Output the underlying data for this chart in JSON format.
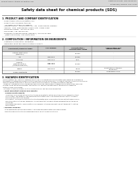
{
  "page_bg": "#ffffff",
  "header_bg": "#e0e0e0",
  "header_left": "Product Name: Lithium Ion Battery Cell",
  "header_right_line1": "Substance Number: SDS-LIB-000019",
  "header_right_line2": "Established / Revision: Dec.7.2016",
  "main_title": "Safety data sheet for chemical products (SDS)",
  "section1_title": "1. PRODUCT AND COMPANY IDENTIFICATION",
  "section1_lines": [
    "  - Product name: Lithium Ion Battery Cell",
    "  - Product code: Cylindrical-type cell",
    "      (IVI 18650, IVI 18650L, IVI 18650A)",
    "  - Company name:    Sanyo Electric Co., Ltd.  Mobile Energy Company",
    "  - Address:   2201  Kamitakanari, Sumoto-City, Hyogo, Japan",
    "  - Telephone number:  +81-799-26-4111",
    "  - Fax number: +81-799-26-4123",
    "  - Emergency telephone number (Weekday): +81-799-26-3962",
    "      (Night and holiday): +81-799-26-4101"
  ],
  "section2_title": "2. COMPOSITION / INFORMATION ON INGREDIENTS",
  "section2_sub": "  - Substance or preparation: Preparation",
  "section2_sub2": "  - Information about the chemical nature of product:",
  "table_col_headers": [
    "Component/Chemical name",
    "CAS number",
    "Concentration /\nConcentration range",
    "Classification and\nhazard labeling"
  ],
  "table_rows": [
    [
      "Lithium cobalt oxide\n(LiMnCoO2)",
      "-",
      "30-50%",
      "-"
    ],
    [
      "Iron",
      "7439-89-6",
      "10-20%",
      "-"
    ],
    [
      "Aluminum",
      "7429-90-5",
      "2-5%",
      "-"
    ],
    [
      "Graphite\n(Meso graphite-1)\n(Artificial graphite-1)",
      "7782-42-5\n7782-42-5",
      "10-25%",
      "-"
    ],
    [
      "Copper",
      "7440-50-8",
      "5-15%",
      "Sensitization of the skin\ngroup No.2"
    ],
    [
      "Organic electrolyte",
      "-",
      "10-20%",
      "Inflammable liquid"
    ]
  ],
  "section3_title": "3. HAZARDS IDENTIFICATION",
  "section3_lines": [
    "  For the battery cell, chemical materials are stored in a hermetically sealed metal case, designed to withstand",
    "  temperature changes and pressure-stress-conditions during normal use. As a result, during normal use, there is no",
    "  physical danger of ignition or explosion and there is no danger of hazardous materials leakage.",
    "    However, if exposed to a fire, added mechanical shocks, decomposed, altered electric without any measure,",
    "  the gas inside cannot be operated. The battery cell case will be breached at the extreme, hazardous",
    "  materials may be released.",
    "    Moreover, if heated strongly by the surrounding fire, soot gas may be emitted."
  ],
  "section3_important": "  - Most important hazard and effects:",
  "section3_human": "      Human health effects:",
  "section3_sub_lines": [
    "        Inhalation: The release of the electrolyte has an anesthetic action and stimulates in respiratory tract.",
    "        Skin contact: The release of the electrolyte stimulates a skin. The electrolyte skin contact causes a",
    "        sore and stimulation on the skin.",
    "        Eye contact: The release of the electrolyte stimulates eyes. The electrolyte eye contact causes a sore",
    "        and stimulation on the eye. Especially, a substance that causes a strong inflammation of the eye is",
    "        contained.",
    "        Environmental effects: Since a battery cell remains in the environment, do not throw out it into the",
    "        environment."
  ],
  "section3_specific": "  - Specific hazards:",
  "section3_specific_lines": [
    "      If the electrolyte contacts with water, it will generate detrimental hydrogen fluoride.",
    "      Since the said electrolyte is inflammable liquid, do not bring close to fire."
  ]
}
